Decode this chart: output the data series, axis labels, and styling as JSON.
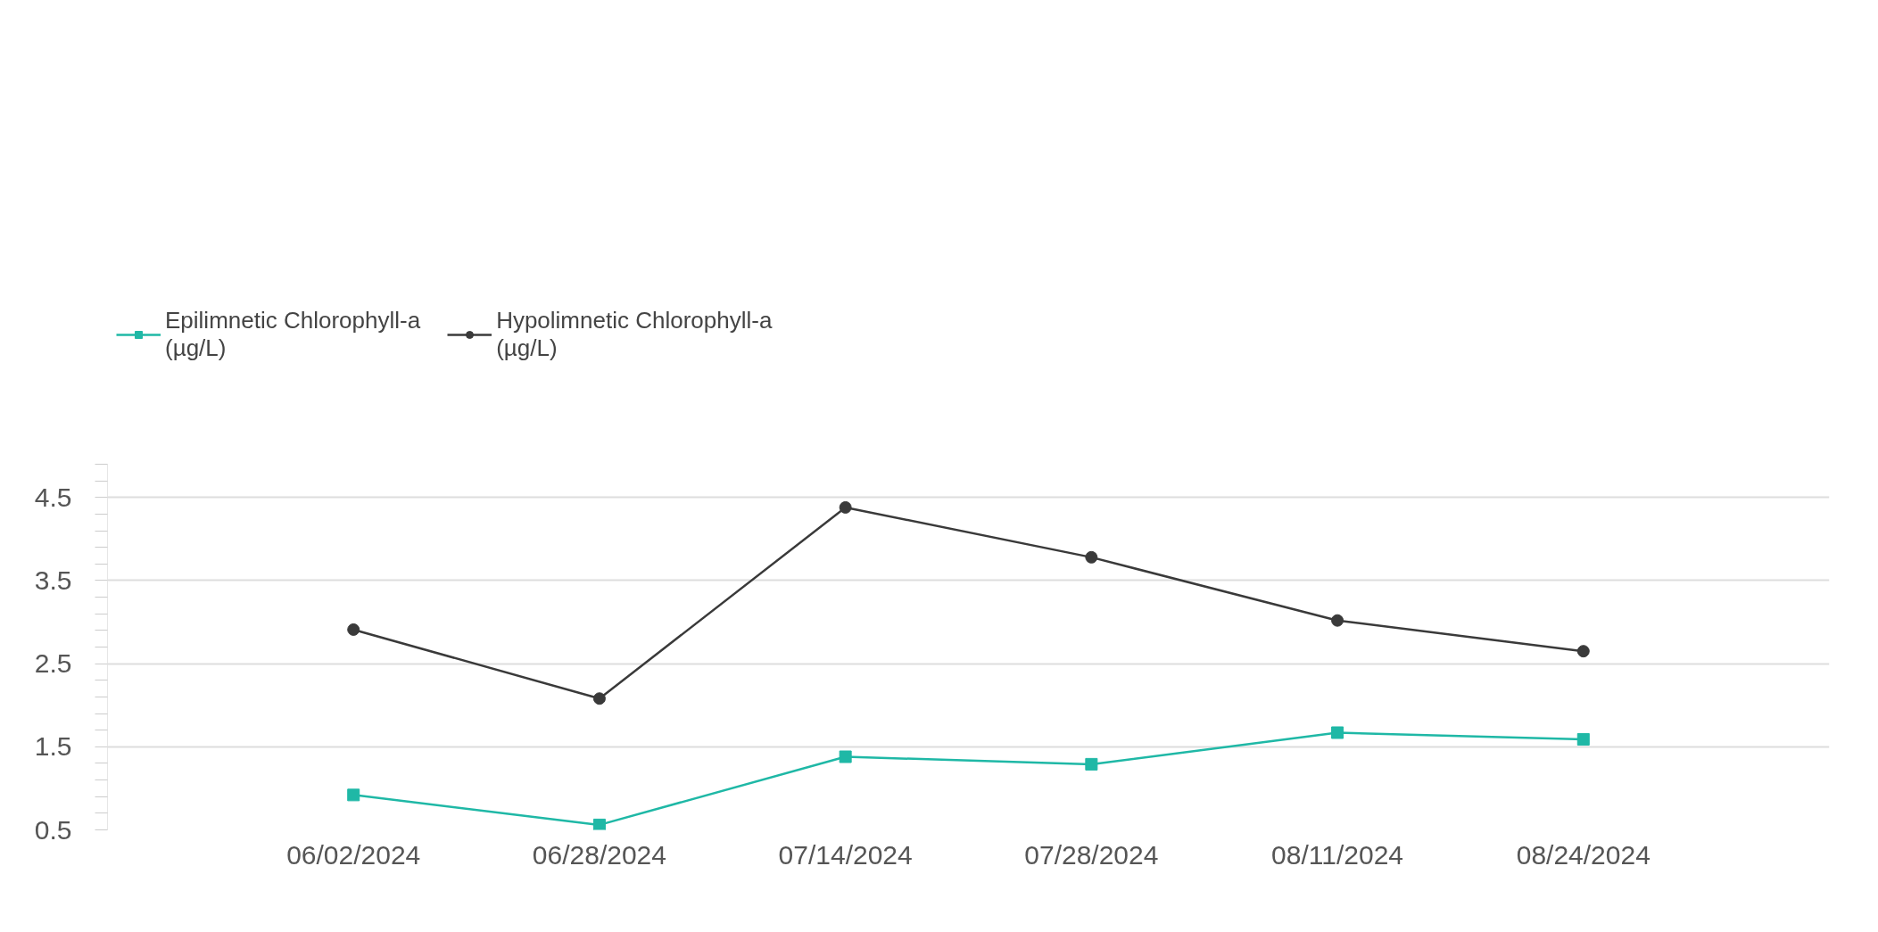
{
  "chart_data": {
    "type": "line",
    "categories": [
      "06/02/2024",
      "06/28/2024",
      "07/14/2024",
      "07/28/2024",
      "08/11/2024",
      "08/24/2024"
    ],
    "series": [
      {
        "name": "Epilimnetic Chlorophyll-a (µg/L)",
        "color": "#1fb8a6",
        "marker": "square",
        "values": [
          0.92,
          0.56,
          1.38,
          1.29,
          1.67,
          1.59
        ]
      },
      {
        "name": "Hypolimnetic Chlorophyll-a (µg/L)",
        "color": "#3a3a3a",
        "marker": "circle",
        "values": [
          2.91,
          2.08,
          4.38,
          3.78,
          3.02,
          2.65
        ]
      }
    ],
    "ylim": [
      0.5,
      4.9
    ],
    "yticks": [
      0.5,
      {
        "value": 0.7,
        "label": null
      },
      {
        "value": 0.9,
        "label": null
      },
      {
        "value": 1.1,
        "label": null
      },
      {
        "value": 1.3,
        "label": null
      },
      1.5,
      {
        "value": 1.7,
        "label": null
      },
      {
        "value": 1.9,
        "label": null
      },
      {
        "value": 2.1,
        "label": null
      },
      {
        "value": 2.3,
        "label": null
      },
      2.5,
      {
        "value": 2.7,
        "label": null
      },
      {
        "value": 2.9,
        "label": null
      },
      {
        "value": 3.1,
        "label": null
      },
      {
        "value": 3.3,
        "label": null
      },
      3.5,
      {
        "value": 3.7,
        "label": null
      },
      {
        "value": 3.9,
        "label": null
      },
      {
        "value": 4.1,
        "label": null
      },
      {
        "value": 4.3,
        "label": null
      },
      4.5,
      {
        "value": 4.7,
        "label": null
      },
      {
        "value": 4.9,
        "label": null
      }
    ],
    "grid": "y",
    "legend": "top left",
    "line_style": "solid"
  }
}
